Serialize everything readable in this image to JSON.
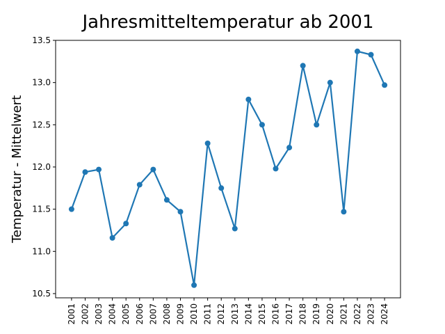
{
  "chart_data": {
    "type": "line",
    "title": "Jahresmitteltemperatur ab 2001",
    "y_label": "Temperatur - Mittelwert",
    "x": [
      2001,
      2002,
      2003,
      2004,
      2005,
      2006,
      2007,
      2008,
      2009,
      2010,
      2011,
      2012,
      2013,
      2014,
      2015,
      2016,
      2017,
      2018,
      2019,
      2020,
      2021,
      2022,
      2023,
      2024
    ],
    "series": [
      {
        "name": "Temperatur",
        "color": "#1f77b4",
        "values": [
          11.5,
          11.94,
          11.97,
          11.16,
          11.33,
          11.79,
          11.97,
          11.61,
          11.47,
          10.6,
          12.28,
          11.75,
          11.27,
          12.8,
          12.5,
          11.98,
          12.23,
          13.2,
          12.5,
          13.0,
          11.47,
          13.37,
          13.33,
          12.97
        ]
      }
    ],
    "xlim": [
      1999.83,
      2025.17
    ],
    "xticks": [
      2001,
      2002,
      2003,
      2004,
      2005,
      2006,
      2007,
      2008,
      2009,
      2010,
      2011,
      2012,
      2013,
      2014,
      2015,
      2016,
      2017,
      2018,
      2019,
      2020,
      2021,
      2022,
      2023,
      2024
    ],
    "ylim": [
      10.45,
      13.5
    ],
    "yticks": [
      10.5,
      {
        "value": 11,
        "label": "11.0"
      },
      11.5,
      {
        "value": 12,
        "label": "12.0"
      },
      12.5,
      {
        "value": 13,
        "label": "13.0"
      },
      13.5
    ],
    "grid": false
  }
}
